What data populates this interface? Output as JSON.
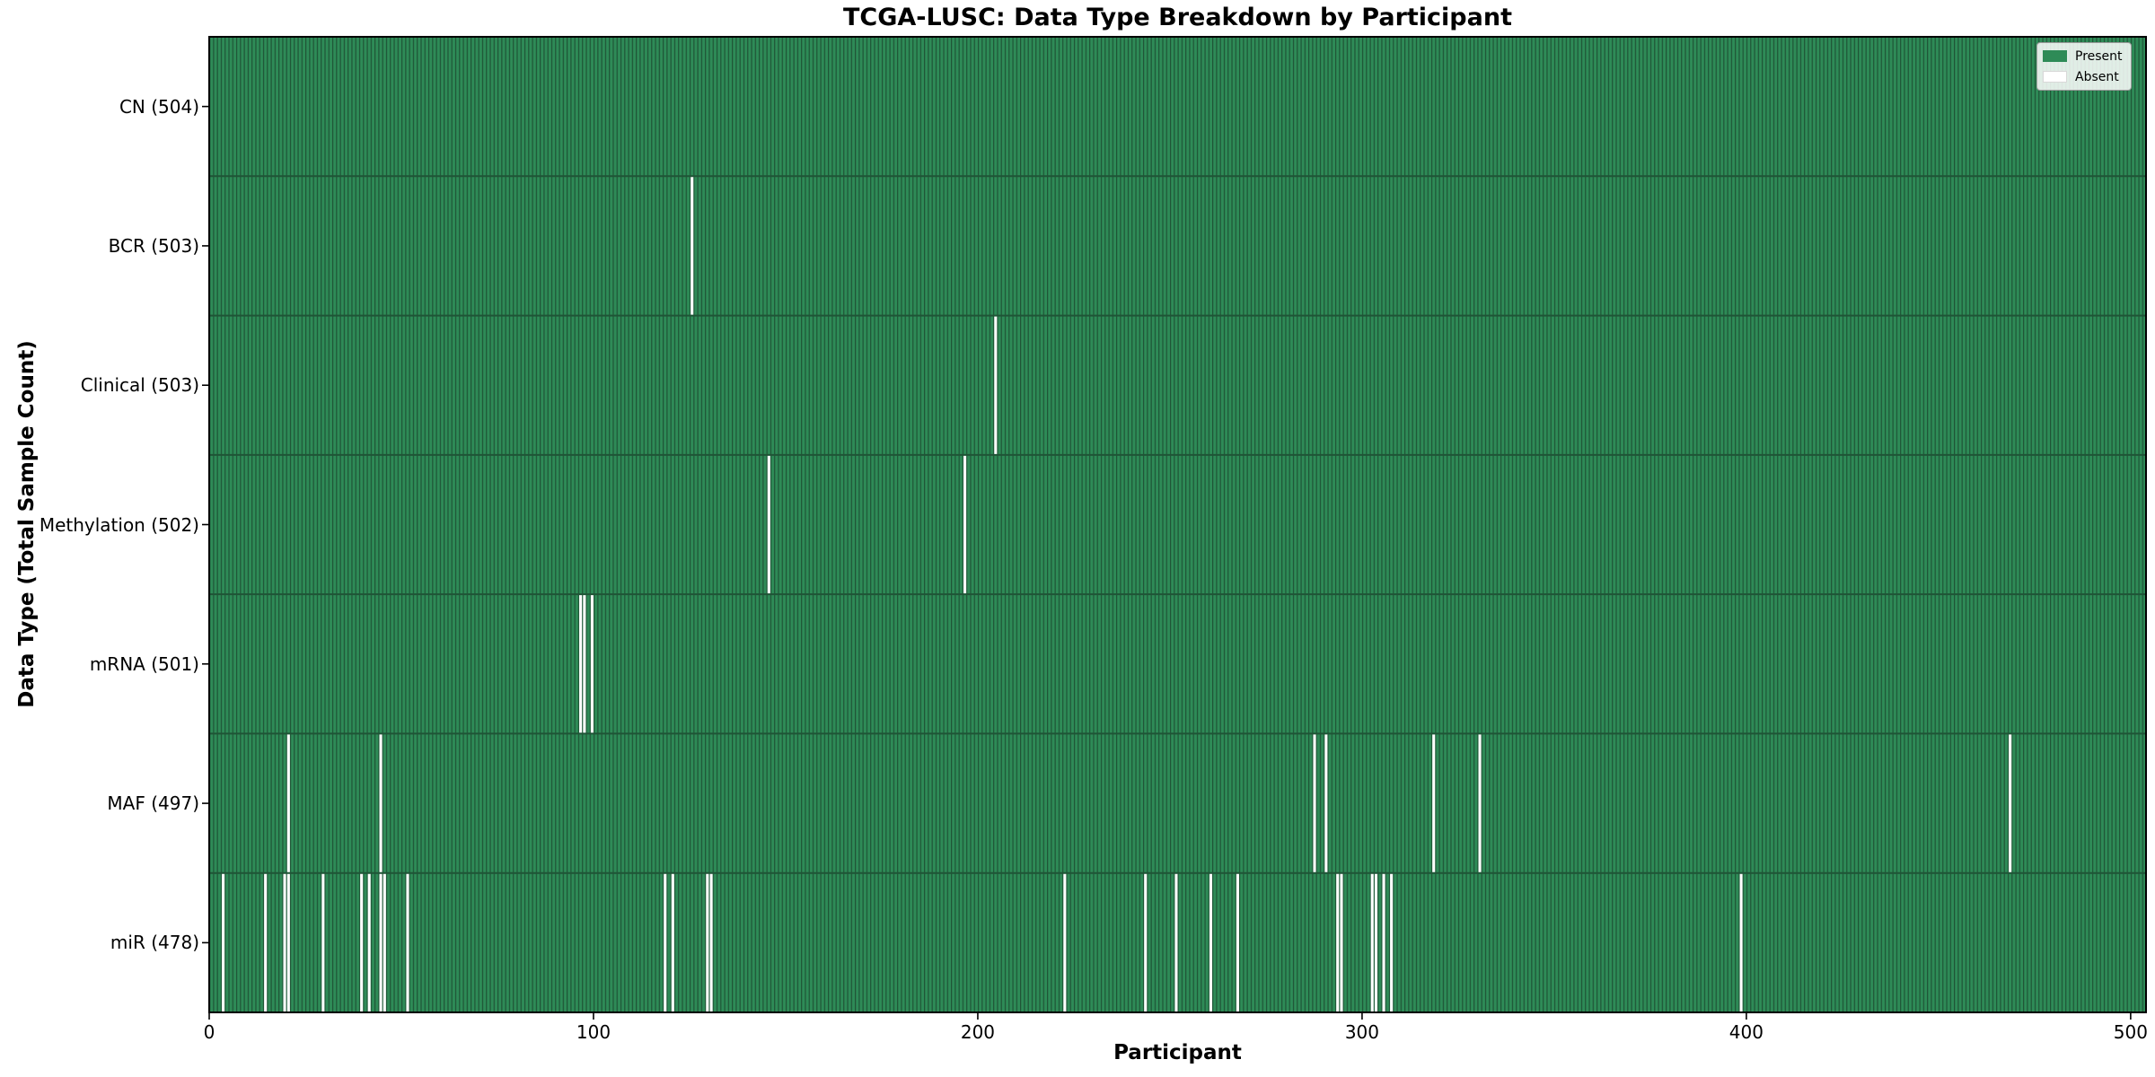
{
  "title": "TCGA-LUSC: Data Type Breakdown by Participant",
  "axes": {
    "x_label": "Participant",
    "y_label": "Data Type (Total Sample Count)"
  },
  "legend": {
    "items": [
      {
        "label": "Present",
        "color": "#2e8b57"
      },
      {
        "label": "Absent",
        "color": "#ffffff"
      }
    ]
  },
  "colors": {
    "present": "#2e8b57",
    "absent": "#ffffff",
    "bar_edge": "#1f5436",
    "spine": "#000000"
  },
  "chart_data": {
    "type": "heatmap",
    "title": "TCGA-LUSC: Data Type Breakdown by Participant",
    "xlabel": "Participant",
    "ylabel": "Data Type (Total Sample Count)",
    "legend": [
      "Present",
      "Absent"
    ],
    "legend_position": "upper right",
    "grid": false,
    "n_participants": 504,
    "x_ticks": [
      0,
      100,
      200,
      300,
      400,
      500
    ],
    "x_range": [
      0,
      504
    ],
    "rows": [
      {
        "label": "CN",
        "count": 504,
        "display": "CN (504)",
        "absent": []
      },
      {
        "label": "BCR",
        "count": 503,
        "display": "BCR (503)",
        "absent": [
          125
        ]
      },
      {
        "label": "Clinical",
        "count": 503,
        "display": "Clinical (503)",
        "absent": [
          204
        ]
      },
      {
        "label": "Methylation",
        "count": 502,
        "display": "Methylation (502)",
        "absent": [
          145,
          196
        ]
      },
      {
        "label": "mRNA",
        "count": 501,
        "display": "mRNA (501)",
        "absent": [
          96,
          97,
          99
        ]
      },
      {
        "label": "MAF",
        "count": 497,
        "display": "MAF (497)",
        "absent": [
          20,
          44,
          287,
          290,
          318,
          330,
          468
        ]
      },
      {
        "label": "miR",
        "count": 478,
        "display": "miR (478)",
        "absent": [
          3,
          14,
          19,
          20,
          29,
          39,
          41,
          44,
          45,
          51,
          118,
          120,
          129,
          130,
          222,
          243,
          251,
          260,
          267,
          293,
          294,
          302,
          303,
          305,
          307,
          398
        ]
      }
    ]
  }
}
